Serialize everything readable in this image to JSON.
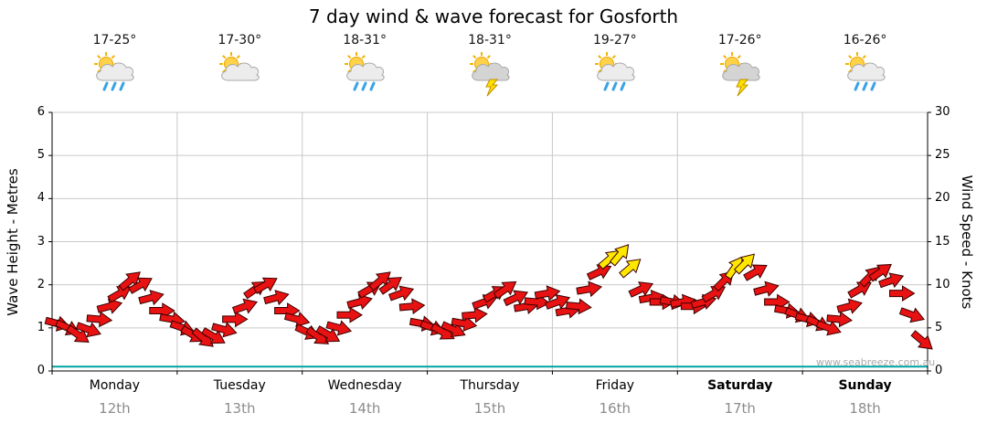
{
  "chart_data": {
    "type": "scatter",
    "title": "7 day wind & wave forecast for Gosforth",
    "watermark": "www.seabreeze.com.au",
    "y_left": {
      "label": "Wave Height - Metres",
      "min": 0,
      "max": 6,
      "ticks": [
        0,
        1,
        2,
        3,
        4,
        5,
        6
      ]
    },
    "y_right": {
      "label": "Wind Speed - Knots",
      "min": 0,
      "max": 30,
      "ticks": [
        0,
        5,
        10,
        15,
        20,
        25,
        30
      ]
    },
    "wave_height_m": 0.1,
    "moderate_threshold_knots": 12,
    "colors": {
      "arrow_light": "#e81212",
      "arrow_moderate": "#ffe800",
      "arrow_outline": "#3a0000",
      "wave_line": "#00a3a3",
      "grid": "#c9c9c9",
      "axis": "#000000",
      "date_text": "#8c8c8c",
      "watermark": "#a9a9a9"
    },
    "days": [
      {
        "name": "Monday",
        "date": "12th",
        "temp": "17-25°",
        "icon": "sun-cloud-rain",
        "weekend": false,
        "knots": [
          5.5,
          5.0,
          4.2,
          4.8,
          6.0,
          7.5,
          9.0,
          10.5,
          10.0,
          8.5,
          7.0,
          6.0
        ],
        "dirs": [
          15,
          25,
          35,
          20,
          5,
          -15,
          -30,
          -40,
          -30,
          -15,
          0,
          10
        ]
      },
      {
        "name": "Tuesday",
        "date": "13th",
        "temp": "17-30°",
        "icon": "sun-cloud",
        "weekend": false,
        "knots": [
          5.0,
          4.2,
          3.8,
          4.0,
          4.8,
          6.0,
          7.5,
          9.5,
          10.0,
          8.5,
          7.0,
          6.0
        ],
        "dirs": [
          20,
          30,
          40,
          30,
          15,
          0,
          -20,
          -35,
          -30,
          -15,
          0,
          15
        ]
      },
      {
        "name": "Wednesday",
        "date": "14th",
        "temp": "18-31°",
        "icon": "sun-cloud-rain",
        "weekend": false,
        "knots": [
          4.5,
          4.0,
          4.2,
          5.0,
          6.5,
          8.0,
          9.5,
          10.5,
          10.0,
          9.0,
          7.5,
          5.5
        ],
        "dirs": [
          25,
          35,
          30,
          15,
          0,
          -15,
          -30,
          -40,
          -35,
          -20,
          -5,
          10
        ]
      },
      {
        "name": "Thursday",
        "date": "15th",
        "temp": "18-31°",
        "icon": "sun-cloud-storm",
        "weekend": false,
        "knots": [
          5.0,
          4.5,
          4.8,
          5.5,
          6.5,
          8.0,
          9.0,
          9.5,
          8.5,
          7.5,
          8.0,
          9.0
        ],
        "dirs": [
          20,
          30,
          25,
          10,
          -5,
          -20,
          -30,
          -35,
          -25,
          -10,
          5,
          -10
        ]
      },
      {
        "name": "Friday",
        "date": "16th",
        "temp": "19-27°",
        "icon": "sun-cloud-rain",
        "weekend": false,
        "knots": [
          8.0,
          7.0,
          7.5,
          9.5,
          11.5,
          13.0,
          13.5,
          12.0,
          9.5,
          8.5,
          8.0,
          8.0
        ],
        "dirs": [
          -20,
          -10,
          5,
          -10,
          -25,
          -40,
          -50,
          -40,
          -25,
          -10,
          0,
          10
        ]
      },
      {
        "name": "Saturday",
        "date": "17th",
        "temp": "17-26°",
        "icon": "sun-cloud-storm",
        "weekend": true,
        "knots": [
          8.0,
          7.5,
          8.0,
          9.0,
          10.5,
          12.0,
          12.5,
          11.5,
          9.5,
          8.0,
          7.0,
          6.5
        ],
        "dirs": [
          -10,
          0,
          -15,
          -30,
          -45,
          -55,
          -45,
          -30,
          -15,
          0,
          10,
          20
        ]
      },
      {
        "name": "Sunday",
        "date": "18th",
        "temp": "16-26°",
        "icon": "sun-cloud-rain",
        "weekend": true,
        "knots": [
          6.0,
          5.5,
          5.0,
          6.0,
          7.5,
          9.5,
          11.0,
          11.5,
          10.5,
          9.0,
          6.5,
          3.5
        ],
        "dirs": [
          15,
          25,
          20,
          5,
          -15,
          -30,
          -45,
          -35,
          -20,
          0,
          20,
          40
        ]
      }
    ]
  }
}
